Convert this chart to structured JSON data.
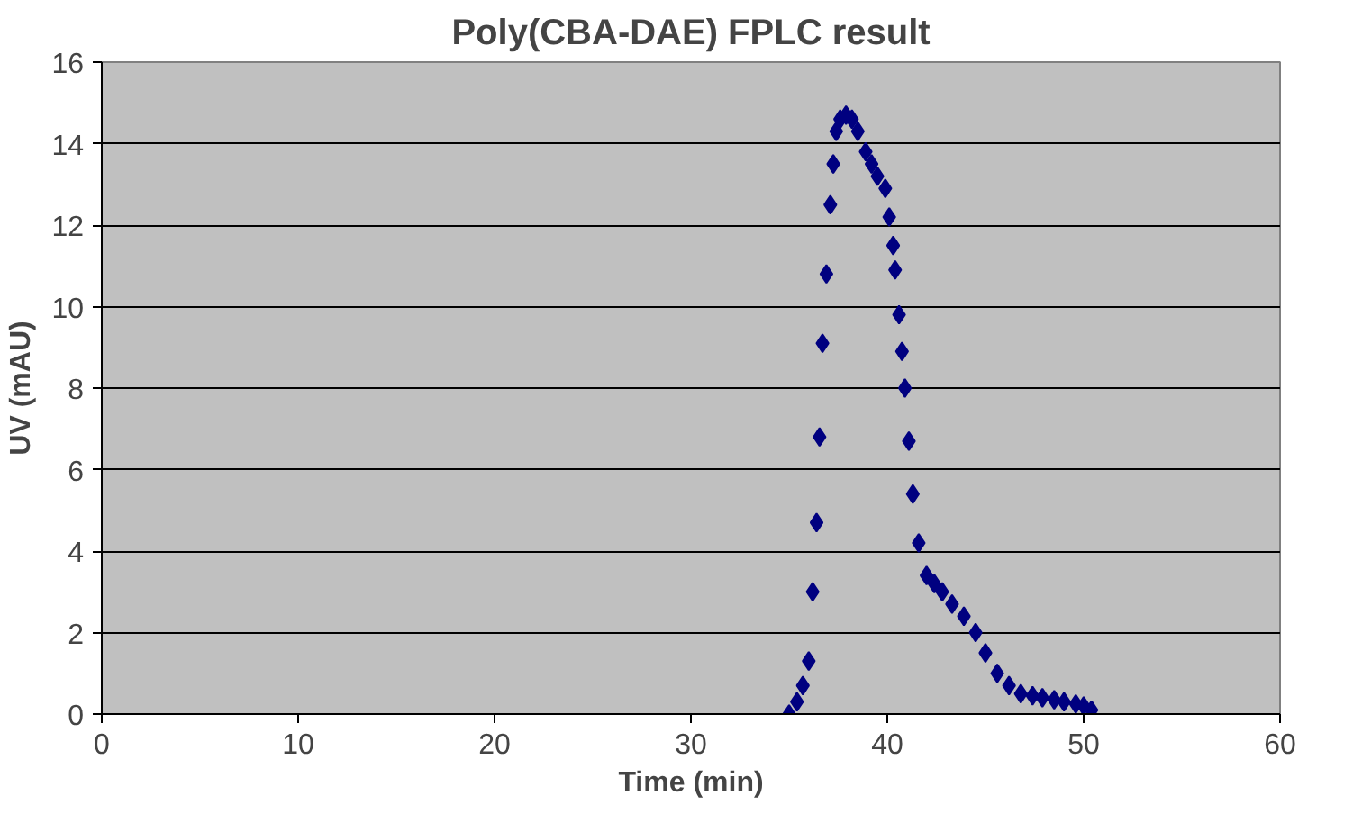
{
  "chart_data": {
    "type": "scatter",
    "title": "Poly(CBA-DAE) FPLC result",
    "xlabel": "Time (min)",
    "ylabel": "UV (mAU)",
    "xlim": [
      0,
      60
    ],
    "xticks": [
      0,
      10,
      20,
      30,
      40,
      50,
      60
    ],
    "ylim": [
      0,
      16
    ],
    "yticks": [
      0,
      2,
      4,
      6,
      8,
      10,
      12,
      14,
      16
    ],
    "grid": "y",
    "marker": "diamond",
    "series": [
      {
        "color": "#000080",
        "x": [
          35.0,
          35.4,
          35.7,
          36.0,
          36.2,
          36.4,
          36.55,
          36.7,
          36.9,
          37.1,
          37.25,
          37.4,
          37.6,
          37.9,
          38.2,
          38.5,
          38.9,
          39.2,
          39.5,
          39.9,
          40.1,
          40.3,
          40.4,
          40.6,
          40.75,
          40.9,
          41.1,
          41.3,
          41.6,
          42.0,
          42.4,
          42.8,
          43.3,
          43.9,
          44.5,
          45.0,
          45.6,
          46.2,
          46.8,
          47.4,
          47.9,
          48.5,
          49.0,
          49.6,
          50.0,
          50.4
        ],
        "values": [
          0.0,
          0.3,
          0.7,
          1.3,
          3.0,
          4.7,
          6.8,
          9.1,
          10.8,
          12.5,
          13.5,
          14.3,
          14.6,
          14.7,
          14.6,
          14.3,
          13.8,
          13.5,
          13.2,
          12.9,
          12.2,
          11.5,
          10.9,
          9.8,
          8.9,
          8.0,
          6.7,
          5.4,
          4.2,
          3.4,
          3.2,
          3.0,
          2.7,
          2.4,
          2.0,
          1.5,
          1.0,
          0.7,
          0.5,
          0.45,
          0.4,
          0.35,
          0.3,
          0.25,
          0.2,
          0.1
        ]
      }
    ]
  }
}
